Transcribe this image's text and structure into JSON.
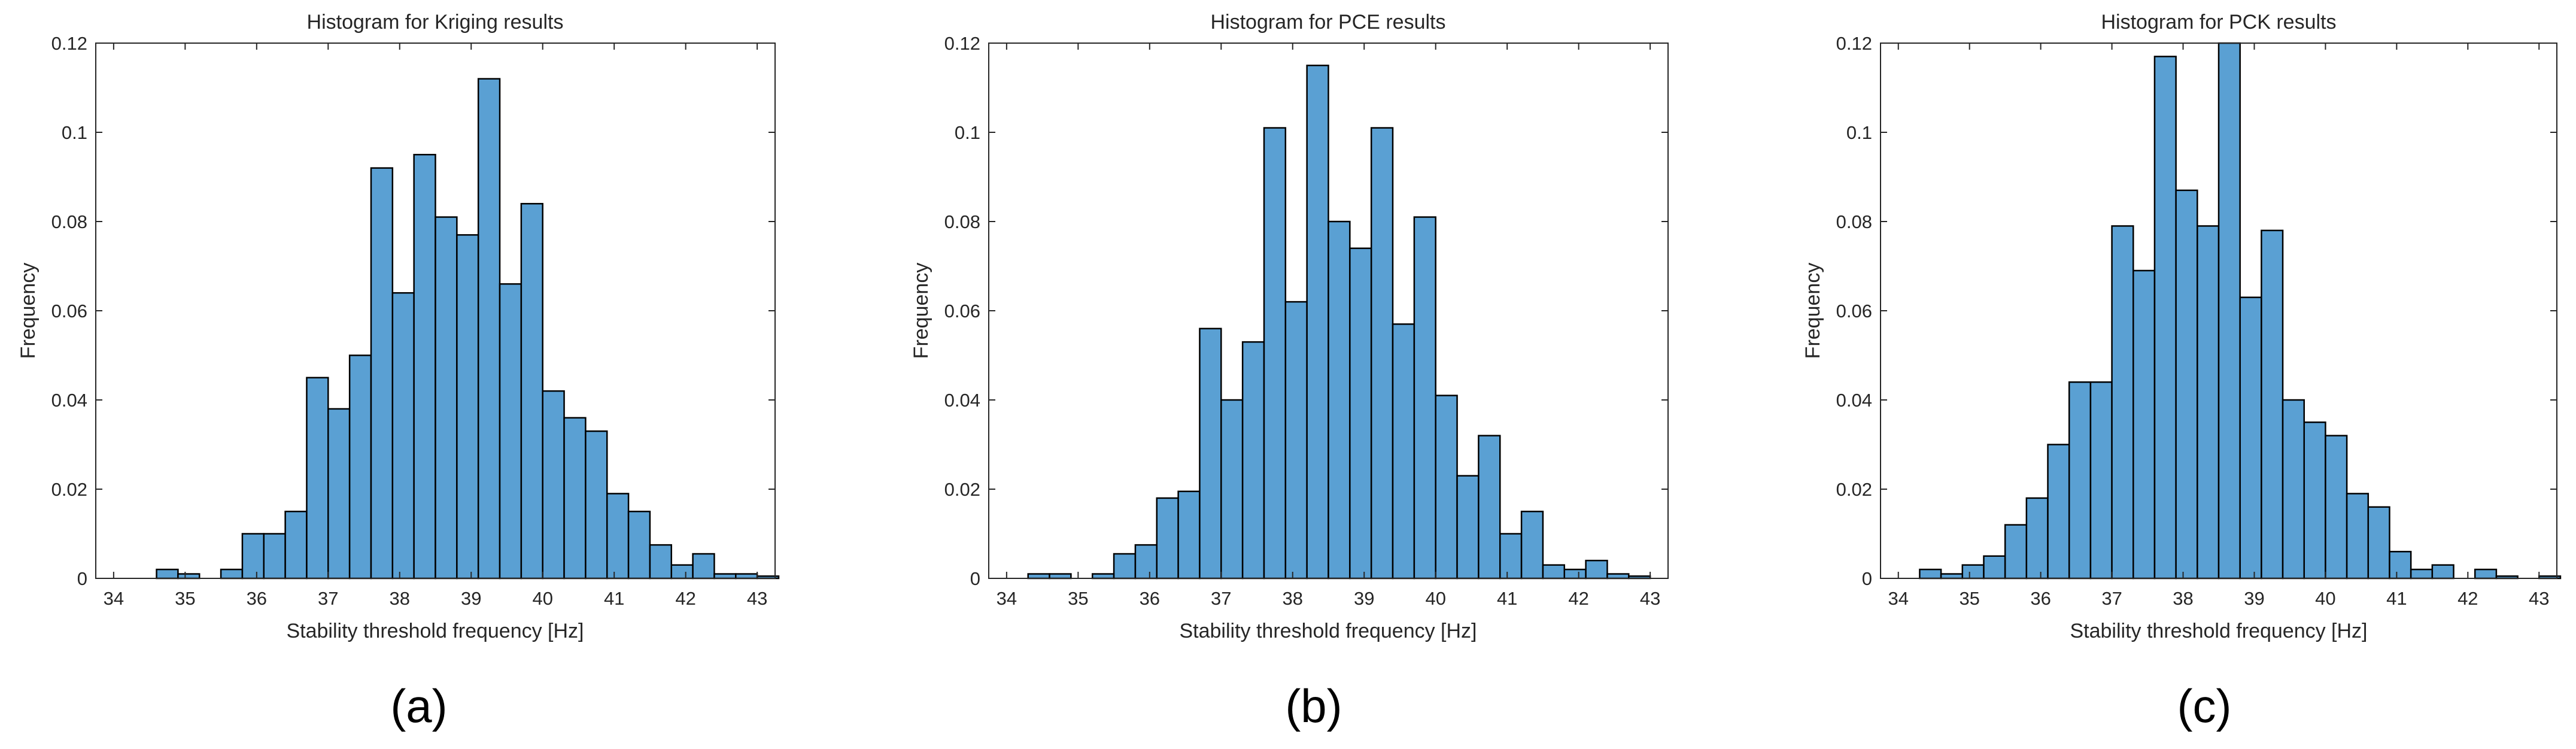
{
  "colors": {
    "bar_fill": "#5aa0d3",
    "bar_edge": "#000000",
    "axis": "#262626",
    "background": "#ffffff"
  },
  "chart_data": [
    {
      "type": "bar",
      "panel": "(a)",
      "title": "Histogram for Kriging results",
      "xlabel": "Stability threshold frequency [Hz]",
      "ylabel": "Frequency",
      "xlim": [
        33.75,
        43.25
      ],
      "ylim": [
        0,
        0.12
      ],
      "xticks": [
        34,
        35,
        36,
        37,
        38,
        39,
        40,
        41,
        42,
        43
      ],
      "yticks": [
        0,
        0.02,
        0.04,
        0.06,
        0.08,
        0.1,
        0.12
      ],
      "ytick_labels": [
        "0",
        "0.02",
        "0.04",
        "0.06",
        "0.08",
        "0.1",
        "0.12"
      ],
      "bin_start": 34.0,
      "bin_width": 0.3,
      "values": [
        0,
        0,
        0.002,
        0.001,
        0,
        0.002,
        0.01,
        0.01,
        0.015,
        0.045,
        0.038,
        0.05,
        0.092,
        0.064,
        0.095,
        0.081,
        0.077,
        0.112,
        0.066,
        0.084,
        0.042,
        0.036,
        0.033,
        0.019,
        0.015,
        0.0075,
        0.003,
        0.0055,
        0.001,
        0.001,
        0.0005
      ]
    },
    {
      "type": "bar",
      "panel": "(b)",
      "title": "Histogram for PCE results",
      "xlabel": "Stability threshold frequency [Hz]",
      "ylabel": "Frequency",
      "xlim": [
        33.75,
        43.25
      ],
      "ylim": [
        0,
        0.12
      ],
      "xticks": [
        34,
        35,
        36,
        37,
        38,
        39,
        40,
        41,
        42,
        43
      ],
      "yticks": [
        0,
        0.02,
        0.04,
        0.06,
        0.08,
        0.1,
        0.12
      ],
      "ytick_labels": [
        "0",
        "0.02",
        "0.04",
        "0.06",
        "0.08",
        "0.1",
        "0.12"
      ],
      "bin_start": 34.0,
      "bin_width": 0.3,
      "values": [
        0,
        0.001,
        0.001,
        0,
        0.001,
        0.0055,
        0.0075,
        0.018,
        0.0195,
        0.056,
        0.04,
        0.053,
        0.101,
        0.062,
        0.115,
        0.08,
        0.074,
        0.101,
        0.057,
        0.081,
        0.041,
        0.023,
        0.032,
        0.01,
        0.015,
        0.003,
        0.002,
        0.004,
        0.001,
        0.0005,
        0
      ]
    },
    {
      "type": "bar",
      "panel": "(c)",
      "title": "Histogram for PCK results",
      "xlabel": "Stability threshold frequency [Hz]",
      "ylabel": "Frequency",
      "xlim": [
        33.75,
        43.25
      ],
      "ylim": [
        0,
        0.12
      ],
      "xticks": [
        34,
        35,
        36,
        37,
        38,
        39,
        40,
        41,
        42,
        43
      ],
      "yticks": [
        0,
        0.02,
        0.04,
        0.06,
        0.08,
        0.1,
        0.12
      ],
      "ytick_labels": [
        "0",
        "0.02",
        "0.04",
        "0.06",
        "0.08",
        "0.1",
        "0.12"
      ],
      "bin_start": 34.0,
      "bin_width": 0.3,
      "values": [
        0,
        0.002,
        0.001,
        0.003,
        0.005,
        0.012,
        0.018,
        0.03,
        0.044,
        0.044,
        0.079,
        0.069,
        0.117,
        0.087,
        0.079,
        0.12,
        0.063,
        0.078,
        0.04,
        0.035,
        0.032,
        0.019,
        0.016,
        0.006,
        0.002,
        0.003,
        0,
        0.002,
        0.0005,
        0,
        0.0005
      ]
    }
  ]
}
